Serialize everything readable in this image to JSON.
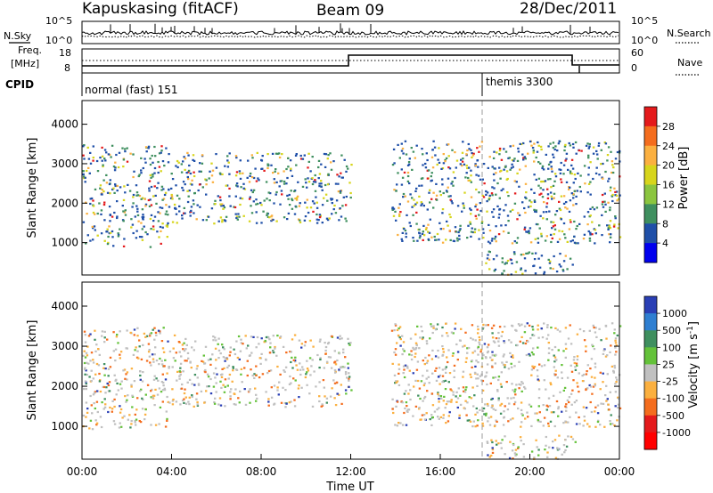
{
  "header": {
    "station": "Kapuskasing (fitACF)",
    "beam": "Beam 09",
    "date": "28/Dec/2011"
  },
  "top_panels": {
    "nsky_label": "N.Sky",
    "nsky_ticks": [
      "10^5",
      "10^0"
    ],
    "nsearch_label": "N.Search",
    "nsearch_ticks": [
      "10^5",
      "10^0"
    ],
    "freq_label": "Freq.",
    "freq_unit": "[MHz]",
    "freq_ticks": [
      "18",
      "8"
    ],
    "nave_label": "Nave",
    "nave_ticks": [
      "60",
      "0"
    ],
    "cpid_label": "CPID",
    "modes": [
      {
        "label": "normal (fast) 151",
        "start_hour": 0
      },
      {
        "label": "themis 3300",
        "start_hour": 18
      }
    ]
  },
  "chart_data": [
    {
      "type": "heatmap",
      "panel": "power",
      "ylabel": "Slant Range [km]",
      "ylim": [
        180,
        4600
      ],
      "yticks": [
        "1000",
        "2000",
        "3000",
        "4000"
      ],
      "xlabel": "Time UT",
      "xlim_hours": [
        0,
        24
      ],
      "xticks": [
        "00:00",
        "04:00",
        "08:00",
        "12:00",
        "16:00",
        "20:00",
        "00:00"
      ],
      "colorbar": {
        "label": "Power [dB]",
        "ticks": [
          "28",
          "24",
          "20",
          "16",
          "12",
          "8",
          "4"
        ],
        "colors": [
          "#e41a1c",
          "#f46d1e",
          "#fbb040",
          "#d7d51c",
          "#8bc53f",
          "#3f8f5f",
          "#1f4fa8",
          "#0000ee"
        ]
      },
      "echo_regions": [
        {
          "t_start": 0.0,
          "t_end": 3.8,
          "r_min": 900,
          "r_max": 3500
        },
        {
          "t_start": 3.8,
          "t_end": 12.0,
          "r_min": 1500,
          "r_max": 3300
        },
        {
          "t_start": 13.8,
          "t_end": 24.0,
          "r_min": 1000,
          "r_max": 3600
        },
        {
          "t_start": 18.0,
          "t_end": 22.0,
          "r_min": 200,
          "r_max": 800
        }
      ]
    },
    {
      "type": "heatmap",
      "panel": "velocity",
      "ylabel": "Slant Range [km]",
      "ylim": [
        180,
        4600
      ],
      "yticks": [
        "1000",
        "2000",
        "3000",
        "4000"
      ],
      "xlabel": "Time UT",
      "xlim_hours": [
        0,
        24
      ],
      "xticks": [
        "00:00",
        "04:00",
        "08:00",
        "12:00",
        "16:00",
        "20:00",
        "00:00"
      ],
      "colorbar": {
        "label": "Velocity [m s",
        "label_sup": "-1",
        "ticks": [
          "1000",
          "500",
          "100",
          "25",
          "-25",
          "-100",
          "-500",
          "-1000"
        ],
        "colors": [
          "#2a3fb5",
          "#2f7fd1",
          "#3f8f5f",
          "#64c23a",
          "#c0c0c0",
          "#fbb040",
          "#f46d1e",
          "#e41a1c",
          "#ff0000"
        ]
      },
      "echo_regions": [
        {
          "t_start": 0.0,
          "t_end": 3.8,
          "r_min": 900,
          "r_max": 3500
        },
        {
          "t_start": 3.8,
          "t_end": 12.0,
          "r_min": 1500,
          "r_max": 3300
        },
        {
          "t_start": 13.8,
          "t_end": 24.0,
          "r_min": 1000,
          "r_max": 3600
        },
        {
          "t_start": 18.0,
          "t_end": 22.0,
          "r_min": 200,
          "r_max": 800
        }
      ]
    }
  ]
}
